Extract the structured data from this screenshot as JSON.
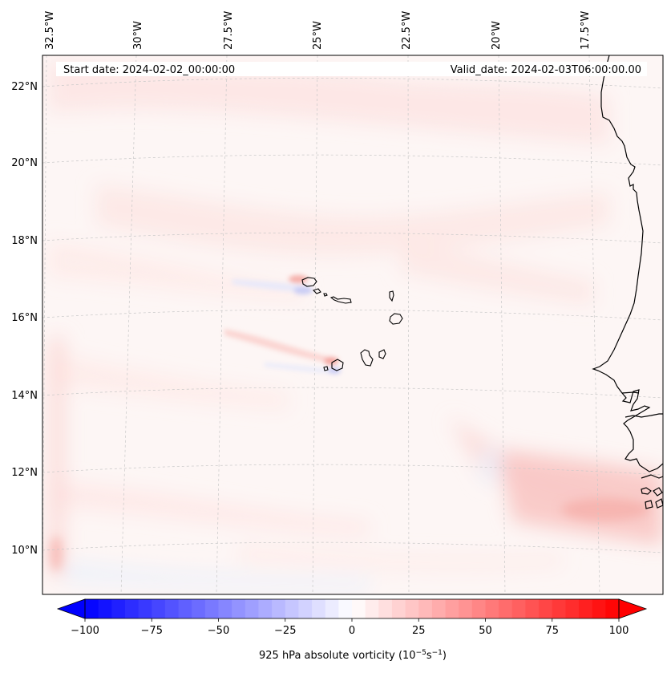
{
  "header": {
    "start_date": "Start date: 2024-02-02_00:00:00",
    "valid_date": "Valid_date: 2024-02-03T06:00:00.00"
  },
  "map": {
    "region": "Cape Verde Islands and West African coast",
    "projection": "conic",
    "field": "925 hPa absolute vorticity",
    "longitude_labels": [
      "32.5°W",
      "30°W",
      "27.5°W",
      "25°W",
      "22.5°W",
      "20°W",
      "17.5°W"
    ],
    "latitude_labels": [
      "22°N",
      "20°N",
      "18°N",
      "16°N",
      "14°N",
      "12°N",
      "10°N"
    ],
    "gridlines": true,
    "coastline_color": "#000000",
    "features": [
      "Cape Verde islands",
      "Mauritania / Senegal coastline",
      "Positive vorticity band near 10–11°N, 17–19°W",
      "Vorticity wakes downstream of islands"
    ]
  },
  "colorbar": {
    "label_prefix": "925 hPa absolute vorticity (10",
    "label_exp1": "−5",
    "label_mid": "s",
    "label_exp2": "−1",
    "label_suffix": ")",
    "tick_labels": [
      "−100",
      "−75",
      "−50",
      "−25",
      "0",
      "25",
      "50",
      "75",
      "100"
    ],
    "min": -100,
    "max": 100,
    "step": 5,
    "extend": "both",
    "colormap": "bwr",
    "low_color": "#0000ff",
    "mid_color": "#ffffff",
    "high_color": "#ff0000"
  }
}
